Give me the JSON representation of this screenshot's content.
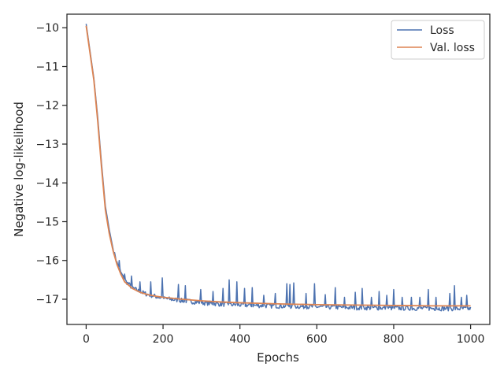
{
  "chart_data": {
    "type": "line",
    "title": "",
    "xlabel": "Epochs",
    "ylabel": "Negative log-likelihood",
    "xlim": [
      -50,
      1050
    ],
    "ylim": [
      -17.65,
      -9.65
    ],
    "x_ticks": [
      0,
      200,
      400,
      600,
      800,
      1000
    ],
    "x_tick_labels": [
      "0",
      "200",
      "400",
      "600",
      "800",
      "1000"
    ],
    "y_ticks": [
      -10,
      -11,
      -12,
      -13,
      -14,
      -15,
      -16,
      -17
    ],
    "y_tick_labels": [
      "−10",
      "−11",
      "−12",
      "−13",
      "−14",
      "−15",
      "−16",
      "−17"
    ],
    "grid": false,
    "legend_position": "top-right",
    "series": [
      {
        "name": "Loss",
        "color": "#4c72b0",
        "smooth_x": [
          0,
          10,
          20,
          30,
          40,
          50,
          60,
          70,
          80,
          90,
          100,
          120,
          140,
          160,
          180,
          200,
          250,
          300,
          350,
          400,
          500,
          600,
          700,
          800,
          900,
          1000
        ],
        "smooth_y": [
          -9.9,
          -10.6,
          -11.3,
          -12.3,
          -13.5,
          -14.6,
          -15.2,
          -15.7,
          -16.05,
          -16.3,
          -16.5,
          -16.7,
          -16.8,
          -16.87,
          -16.92,
          -16.97,
          -17.03,
          -17.08,
          -17.12,
          -17.14,
          -17.17,
          -17.19,
          -17.21,
          -17.22,
          -17.23,
          -17.24
        ],
        "spikes": [
          {
            "x": 75,
            "y": -15.9
          },
          {
            "x": 85,
            "y": -16.0
          },
          {
            "x": 100,
            "y": -16.35
          },
          {
            "x": 118,
            "y": -16.4
          },
          {
            "x": 140,
            "y": -16.55
          },
          {
            "x": 168,
            "y": -16.55
          },
          {
            "x": 198,
            "y": -16.45
          },
          {
            "x": 240,
            "y": -16.62
          },
          {
            "x": 258,
            "y": -16.65
          },
          {
            "x": 298,
            "y": -16.75
          },
          {
            "x": 330,
            "y": -16.8
          },
          {
            "x": 355,
            "y": -16.72
          },
          {
            "x": 372,
            "y": -16.5
          },
          {
            "x": 392,
            "y": -16.55
          },
          {
            "x": 412,
            "y": -16.72
          },
          {
            "x": 432,
            "y": -16.7
          },
          {
            "x": 462,
            "y": -16.9
          },
          {
            "x": 492,
            "y": -16.85
          },
          {
            "x": 522,
            "y": -16.6
          },
          {
            "x": 530,
            "y": -16.62
          },
          {
            "x": 540,
            "y": -16.58
          },
          {
            "x": 572,
            "y": -16.85
          },
          {
            "x": 593,
            "y": -16.6
          },
          {
            "x": 622,
            "y": -16.88
          },
          {
            "x": 648,
            "y": -16.7
          },
          {
            "x": 672,
            "y": -16.95
          },
          {
            "x": 700,
            "y": -16.82
          },
          {
            "x": 718,
            "y": -16.72
          },
          {
            "x": 742,
            "y": -16.95
          },
          {
            "x": 762,
            "y": -16.8
          },
          {
            "x": 782,
            "y": -16.9
          },
          {
            "x": 800,
            "y": -16.75
          },
          {
            "x": 822,
            "y": -16.95
          },
          {
            "x": 845,
            "y": -16.95
          },
          {
            "x": 868,
            "y": -16.95
          },
          {
            "x": 890,
            "y": -16.75
          },
          {
            "x": 910,
            "y": -16.95
          },
          {
            "x": 945,
            "y": -16.85
          },
          {
            "x": 958,
            "y": -16.65
          },
          {
            "x": 975,
            "y": -16.95
          },
          {
            "x": 990,
            "y": -16.9
          }
        ]
      },
      {
        "name": "Val. loss",
        "color": "#dd8452",
        "x": [
          0,
          10,
          20,
          30,
          40,
          50,
          60,
          70,
          80,
          90,
          100,
          120,
          140,
          160,
          180,
          200,
          250,
          300,
          350,
          400,
          500,
          600,
          700,
          800,
          900,
          1000
        ],
        "y": [
          -9.95,
          -10.65,
          -11.35,
          -12.4,
          -13.6,
          -14.7,
          -15.3,
          -15.75,
          -16.1,
          -16.35,
          -16.55,
          -16.72,
          -16.82,
          -16.88,
          -16.92,
          -16.95,
          -17.0,
          -17.04,
          -17.07,
          -17.09,
          -17.12,
          -17.14,
          -17.15,
          -17.16,
          -17.17,
          -17.17
        ]
      }
    ]
  }
}
